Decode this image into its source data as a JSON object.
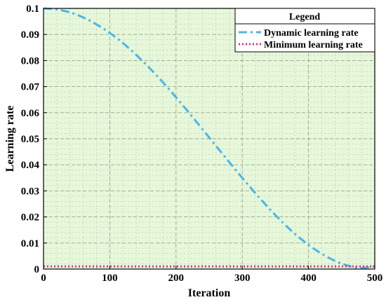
{
  "chart_data": {
    "type": "line",
    "title": "",
    "xlabel": "Iteration",
    "ylabel": "Learning rate",
    "xlim": [
      0,
      500
    ],
    "ylim": [
      0,
      0.1
    ],
    "xticks": [
      "0",
      "100",
      "200",
      "300",
      "400",
      "500"
    ],
    "yticks": [
      "0",
      "0.01",
      "0.02",
      "0.03",
      "0.04",
      "0.05",
      "0.06",
      "0.07",
      "0.08",
      "0.09",
      "0.1"
    ],
    "grid": true,
    "background_color": "#e6f7da",
    "legend": {
      "title": "Legend",
      "placement": "top-right"
    },
    "series": [
      {
        "name": "Dynamic learning rate",
        "color": "#4bb6e8",
        "style": "dash-dot",
        "x": [
          0,
          25,
          50,
          75,
          100,
          125,
          150,
          175,
          200,
          225,
          250,
          275,
          300,
          325,
          350,
          375,
          400,
          425,
          450,
          475,
          500
        ],
        "y": [
          0.1,
          0.0994,
          0.0976,
          0.0946,
          0.0906,
          0.0856,
          0.0797,
          0.0731,
          0.0659,
          0.0583,
          0.0505,
          0.0427,
          0.035,
          0.0276,
          0.0207,
          0.0145,
          0.0093,
          0.0051,
          0.0021,
          0.0005,
          0.001
        ]
      },
      {
        "name": "Minimum learning rate",
        "color": "#e0308a",
        "style": "dotted",
        "x": [
          0,
          500
        ],
        "y": [
          0.001,
          0.001
        ]
      }
    ]
  }
}
